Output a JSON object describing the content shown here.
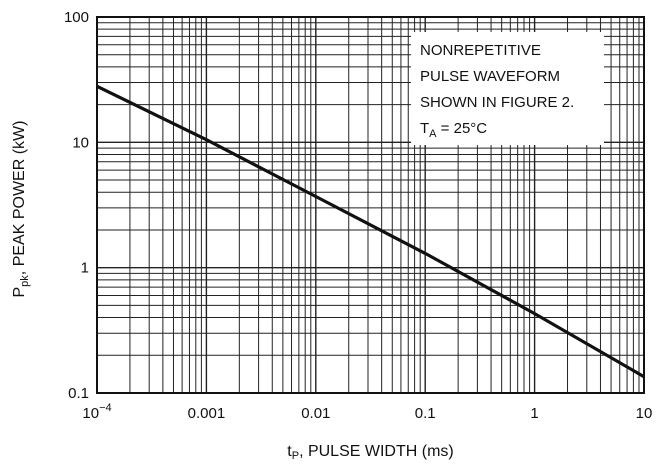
{
  "chart_data": {
    "type": "line",
    "x_scale": "log",
    "y_scale": "log",
    "xlim": [
      0.0001,
      10
    ],
    "ylim": [
      0.1,
      100
    ],
    "grid": true,
    "x_ticks": [
      {
        "value": 0.0001,
        "base": "10",
        "exp": "−4"
      },
      {
        "value": 0.001,
        "label": "0.001"
      },
      {
        "value": 0.01,
        "label": "0.01"
      },
      {
        "value": 0.1,
        "label": "0.1"
      },
      {
        "value": 1,
        "label": "1"
      },
      {
        "value": 10,
        "label": "10"
      }
    ],
    "y_ticks": [
      {
        "value": 100,
        "label": "100"
      },
      {
        "value": 10,
        "label": "10"
      },
      {
        "value": 1,
        "label": "1"
      },
      {
        "value": 0.1,
        "label": "0.1"
      }
    ],
    "xlabel": {
      "t": "t",
      "sub": "P",
      "rest": ", PULSE WIDTH (ms)"
    },
    "ylabel": {
      "p": "P",
      "sub": "pk",
      "rest": ", PEAK POWER (kW)"
    },
    "series": [
      {
        "x": [
          0.0001,
          0.001,
          0.01,
          0.1,
          1,
          10
        ],
        "y": [
          28,
          10.5,
          3.7,
          1.3,
          0.43,
          0.135
        ],
        "color": "#111111"
      }
    ],
    "annotation": {
      "lines": [
        "NONREPETITIVE",
        "PULSE WAVEFORM",
        "SHOWN IN FIGURE 2."
      ],
      "temp_main": "T",
      "temp_sub": "A",
      "temp_rest": " = 25°C"
    }
  }
}
